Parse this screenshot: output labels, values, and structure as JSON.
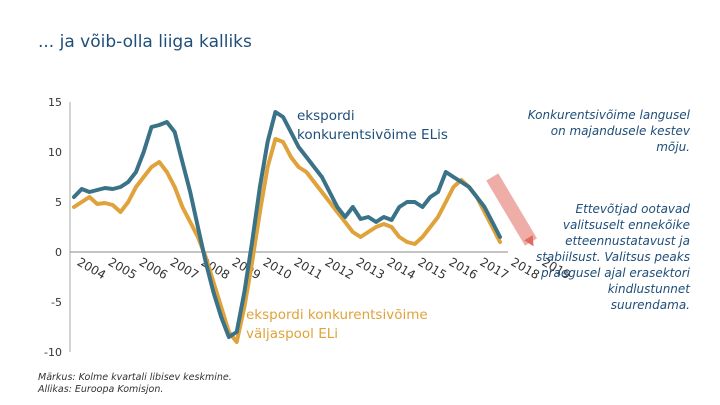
{
  "title": "... ja võib-olla liiga kalliks",
  "note": {
    "line1": "Märkus: Kolme kvartali libisev keskmine.",
    "line2": "Allikas: Euroopa Komisjon."
  },
  "side_text": {
    "p1": "Konkurentsivõime langusel on majandusele kestev mõju.",
    "p2": "Ettevõtjad ootavad valitsuselt ennekõike etteennustatavust ja stabiilsust. Valitsus peaks praegusel ajal erasektori kindlustunnet suurendama."
  },
  "colors": {
    "eu_series": "#3a7288",
    "noneu_series": "#e0a23a",
    "title": "#1f4e79",
    "arrow": "#e06a5e"
  },
  "chart_data": {
    "type": "line",
    "title": "",
    "xlabel": "",
    "ylabel": "",
    "ylim": [
      -10,
      15
    ],
    "yticks": [
      15,
      10,
      5,
      0,
      -5,
      -10
    ],
    "xtick_labels": [
      "2004",
      "2005",
      "2006",
      "2007",
      "2008",
      "2009",
      "2010",
      "2011",
      "2012",
      "2013",
      "2014",
      "2015",
      "2016",
      "2017",
      "2018",
      "2019"
    ],
    "x_start": 2004.0,
    "x_step": 0.25,
    "series": [
      {
        "name": "ekspordi konkurentsivõime ELis",
        "label_lines": [
          "ekspordi",
          "konkurentsivõime ELis"
        ],
        "values": [
          5.5,
          6.3,
          6.0,
          6.2,
          6.4,
          6.3,
          6.5,
          7.0,
          8.0,
          10.0,
          12.5,
          12.7,
          13.0,
          12.0,
          9.0,
          6.0,
          2.5,
          -1.0,
          -4.0,
          -6.5,
          -8.5,
          -8.0,
          -4.0,
          1.0,
          6.5,
          11.0,
          14.0,
          13.5,
          12.0,
          10.5,
          9.5,
          8.5,
          7.5,
          6.0,
          4.5,
          3.5,
          4.5,
          3.3,
          3.5,
          3.0,
          3.5,
          3.2,
          4.5,
          5.0,
          5.0,
          4.5,
          5.5,
          6.0,
          8.0,
          7.5,
          7.0,
          6.5,
          5.5,
          4.5,
          3.0,
          1.5
        ]
      },
      {
        "name": "ekspordi konkurentsivõime väljaspool ELi",
        "label_lines": [
          "ekspordi konkurentsivõime",
          "väljaspool ELi"
        ],
        "values": [
          4.5,
          5.0,
          5.5,
          4.8,
          4.9,
          4.7,
          4.0,
          5.0,
          6.5,
          7.5,
          8.5,
          9.0,
          8.0,
          6.5,
          4.5,
          3.0,
          1.5,
          -0.5,
          -3.0,
          -5.5,
          -8.0,
          -9.0,
          -5.5,
          -1.0,
          4.0,
          8.5,
          11.3,
          11.0,
          9.5,
          8.5,
          8.0,
          7.0,
          6.0,
          5.0,
          4.0,
          3.0,
          2.0,
          1.5,
          2.0,
          2.5,
          2.8,
          2.5,
          1.5,
          1.0,
          0.8,
          1.5,
          2.5,
          3.5,
          5.0,
          6.5,
          7.2,
          6.5,
          5.5,
          4.0,
          2.5,
          1.0
        ]
      }
    ],
    "annotation_arrow": {
      "from": [
        2017.5,
        7.5
      ],
      "to": [
        2018.75,
        1.0
      ]
    }
  }
}
